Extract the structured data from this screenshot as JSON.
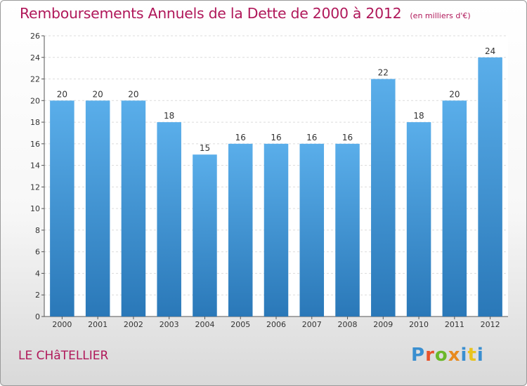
{
  "chart_data": {
    "type": "bar",
    "title": "Remboursements Annuels de la Dette de 2000 à 2012",
    "unit_note": "(en milliers d'€)",
    "categories": [
      "2000",
      "2001",
      "2002",
      "2003",
      "2004",
      "2005",
      "2006",
      "2007",
      "2008",
      "2009",
      "2010",
      "2011",
      "2012"
    ],
    "values": [
      20,
      20,
      20,
      18,
      15,
      16,
      16,
      16,
      16,
      22,
      18,
      20,
      24
    ],
    "ylim": [
      0,
      26
    ],
    "yticks": [
      0,
      2,
      4,
      6,
      8,
      10,
      12,
      14,
      16,
      18,
      20,
      22,
      24,
      26
    ],
    "xlabel": "",
    "ylabel": "",
    "grid": true,
    "bar_color_top": "#5aaeea",
    "bar_color_bottom": "#2a78b8"
  },
  "commune": "LE CHâTELLIER",
  "logo": {
    "letters": [
      "P",
      "r",
      "o",
      "x",
      "i",
      "t",
      "i"
    ],
    "colors": [
      "#3a8fd0",
      "#e8522b",
      "#6bb82a",
      "#e88a1e",
      "#3a8fd0",
      "#e8c41e",
      "#3a8fd0"
    ]
  }
}
